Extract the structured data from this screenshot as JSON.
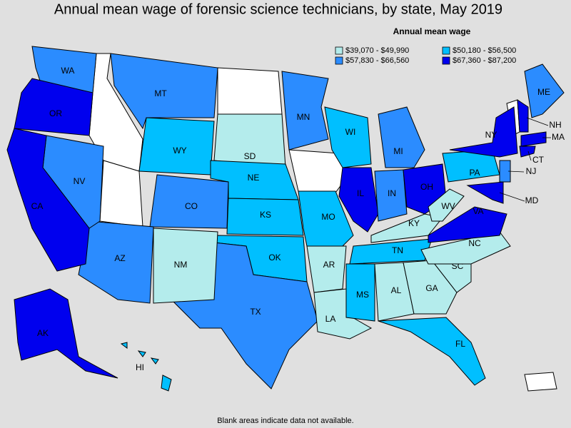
{
  "chart_data": {
    "type": "choropleth",
    "title": "Annual mean wage of forensic science technicians, by state, May 2019",
    "legend_title": "Annual mean wage",
    "legend": [
      {
        "label": "$39,070 - $49,990",
        "color": "#b4ecec"
      },
      {
        "label": "$50,180 - $56,500",
        "color": "#00bfff"
      },
      {
        "label": "$57,830 - $66,560",
        "color": "#2b8cff"
      },
      {
        "label": "$67,360 - $87,200",
        "color": "#0000ee"
      }
    ],
    "states": [
      {
        "label": "WA",
        "color": "#2b8cff"
      },
      {
        "label": "OR",
        "color": "#0000ee"
      },
      {
        "label": "MT",
        "color": "#2b8cff"
      },
      {
        "label": "WY",
        "color": "#00bfff"
      },
      {
        "label": "SD",
        "color": "#b4ecec"
      },
      {
        "label": "NE",
        "color": "#00bfff"
      },
      {
        "label": "CO",
        "color": "#2b8cff"
      },
      {
        "label": "KS",
        "color": "#00bfff"
      },
      {
        "label": "OK",
        "color": "#00bfff"
      },
      {
        "label": "TX",
        "color": "#2b8cff"
      },
      {
        "label": "NM",
        "color": "#b4ecec"
      },
      {
        "label": "AZ",
        "color": "#2b8cff"
      },
      {
        "label": "NV",
        "color": "#2b8cff"
      },
      {
        "label": "CA",
        "color": "#0000ee"
      },
      {
        "label": "MN",
        "color": "#2b8cff"
      },
      {
        "label": "MO",
        "color": "#00bfff"
      },
      {
        "label": "AR",
        "color": "#b4ecec"
      },
      {
        "label": "LA",
        "color": "#b4ecec"
      },
      {
        "label": "WI",
        "color": "#00bfff"
      },
      {
        "label": "IL",
        "color": "#0000ee"
      },
      {
        "label": "IN",
        "color": "#2b8cff"
      },
      {
        "label": "MI",
        "color": "#2b8cff"
      },
      {
        "label": "OH",
        "color": "#0000ee"
      },
      {
        "label": "KY",
        "color": "#b4ecec"
      },
      {
        "label": "TN",
        "color": "#00bfff"
      },
      {
        "label": "MS",
        "color": "#00bfff"
      },
      {
        "label": "AL",
        "color": "#b4ecec"
      },
      {
        "label": "GA",
        "color": "#b4ecec"
      },
      {
        "label": "FL",
        "color": "#00bfff"
      },
      {
        "label": "SC",
        "color": "#b4ecec"
      },
      {
        "label": "NC",
        "color": "#b4ecec"
      },
      {
        "label": "VA",
        "color": "#0000ee"
      },
      {
        "label": "WV",
        "color": "#b4ecec"
      },
      {
        "label": "PA",
        "color": "#00bfff"
      },
      {
        "label": "NY",
        "color": "#0000ee"
      },
      {
        "label": "NJ",
        "color": "#2b8cff"
      },
      {
        "label": "MD",
        "color": "#0000ee"
      },
      {
        "label": "ME",
        "color": "#2b8cff"
      },
      {
        "label": "NH",
        "color": "#0000ee"
      },
      {
        "label": "MA",
        "color": "#0000ee"
      },
      {
        "label": "CT",
        "color": "#0000ee"
      },
      {
        "label": "HI",
        "color": "#00bfff"
      },
      {
        "label": "AK",
        "color": "#0000ee"
      }
    ],
    "note": "Blank areas indicate data not available."
  }
}
